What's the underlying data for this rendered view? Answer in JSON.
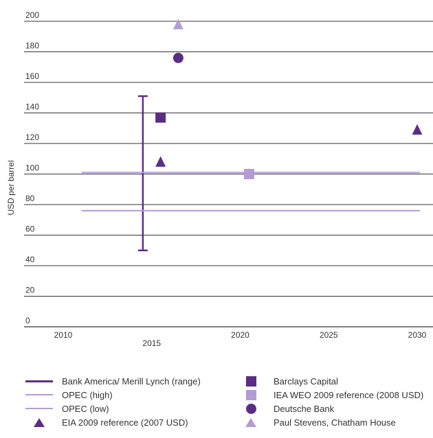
{
  "colors": {
    "dark_purple": "#5c2d84",
    "light_purple": "#b49cd0",
    "axis": "#333333"
  },
  "chart_data": {
    "type": "scatter",
    "ylabel": "USD per barrel",
    "xlabel": "",
    "ylim": [
      0,
      200
    ],
    "xlim": [
      2008,
      2031
    ],
    "y_ticks": [
      0,
      20,
      40,
      60,
      80,
      100,
      120,
      140,
      160,
      180,
      200
    ],
    "x_ticks": [
      2010,
      2015,
      2020,
      2025,
      2030
    ],
    "grid": "horizontal",
    "series": [
      {
        "name": "Bank America/ Merill Lynch (range)",
        "type": "range",
        "color": "#5c2d84",
        "x": 2014.5,
        "low": 50,
        "high": 151
      },
      {
        "name": "OPEC (high)",
        "type": "hline",
        "color": "#b49cd0",
        "y": 101,
        "x_start": 2011,
        "x_end": 2030
      },
      {
        "name": "OPEC (low)",
        "type": "hline",
        "color": "#b49cd0",
        "y": 76,
        "x_start": 2011,
        "x_end": 2030
      },
      {
        "name": "EIA 2009 reference (2007 USD)",
        "type": "triangle",
        "color": "#5c2d84",
        "points": [
          {
            "x": 2015.5,
            "y": 108
          },
          {
            "x": 2030,
            "y": 129
          }
        ]
      },
      {
        "name": "Barclays Capital",
        "type": "square",
        "color": "#5c2d84",
        "points": [
          {
            "x": 2015.5,
            "y": 137
          }
        ]
      },
      {
        "name": "IEA WEO 2009 reference (2008 USD)",
        "type": "square",
        "color": "#b49cd0",
        "points": [
          {
            "x": 2020.5,
            "y": 100
          }
        ]
      },
      {
        "name": "Deutsche Bank",
        "type": "circle",
        "color": "#5c2d84",
        "points": [
          {
            "x": 2016.5,
            "y": 176
          }
        ]
      },
      {
        "name": "Paul Stevens, Chatham House",
        "type": "triangle",
        "color": "#b49cd0",
        "points": [
          {
            "x": 2016.5,
            "y": 198
          }
        ]
      }
    ]
  },
  "legend": {
    "left": [
      {
        "label": "Bank America/ Merill Lynch (range)",
        "symbol": "line-thick",
        "color": "#5c2d84"
      },
      {
        "label": "OPEC (high)",
        "symbol": "line",
        "color": "#b49cd0"
      },
      {
        "label": "OPEC (low)",
        "symbol": "line",
        "color": "#b49cd0"
      },
      {
        "label": "EIA 2009 reference (2007 USD)",
        "symbol": "triangle",
        "color": "#5c2d84"
      }
    ],
    "right": [
      {
        "label": "Barclays Capital",
        "symbol": "square",
        "color": "#5c2d84"
      },
      {
        "label": "IEA WEO 2009 reference (2008 USD)",
        "symbol": "square",
        "color": "#b49cd0"
      },
      {
        "label": "Deutsche Bank",
        "symbol": "circle",
        "color": "#5c2d84"
      },
      {
        "label": "Paul Stevens, Chatham House",
        "symbol": "triangle",
        "color": "#b49cd0"
      }
    ]
  }
}
